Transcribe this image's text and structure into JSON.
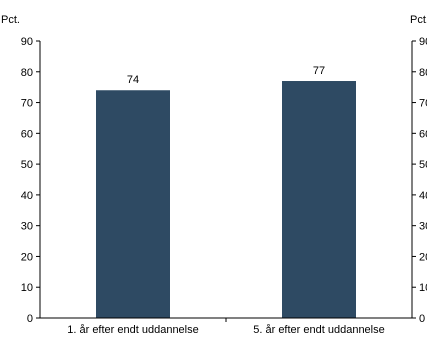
{
  "chart_data": {
    "type": "bar",
    "categories": [
      "1. år efter endt uddannelse",
      "5. år efter endt uddannelse"
    ],
    "values": [
      74,
      77
    ],
    "data_labels": [
      "74",
      "77"
    ],
    "title": "",
    "xlabel": "",
    "ylabel": "",
    "y_unit_left": "Pct.",
    "y_unit_right": "Pct.",
    "ylim": [
      0,
      90
    ],
    "y_ticks": [
      0,
      10,
      20,
      30,
      40,
      50,
      60,
      70,
      80,
      90
    ],
    "y_tick_labels": [
      "0",
      "10",
      "20",
      "30",
      "40",
      "50",
      "60",
      "70",
      "80",
      "90"
    ],
    "grid": false,
    "legend": "none",
    "bar_color": "#2e4a63"
  }
}
